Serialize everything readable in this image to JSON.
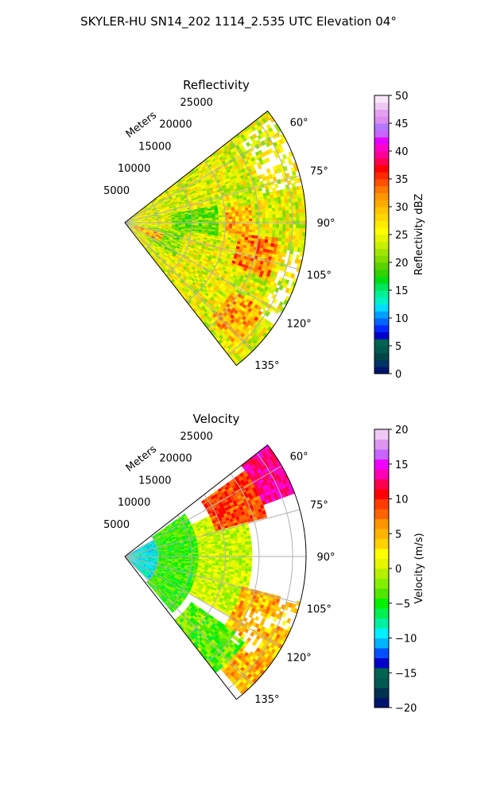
{
  "suptitle": "SKYLER-HU  SN14_202  1114_2.535 UTC Elevation 04°",
  "colors": {
    "grid": "#b0b0b0",
    "frame": "#000000",
    "reflectivity_scale": [
      "#00146e",
      "#003264",
      "#004646",
      "#005a50",
      "#006450",
      "#0000c8",
      "#0028ff",
      "#0064ff",
      "#00a0ff",
      "#00dcff",
      "#00f0c8",
      "#00f096",
      "#00e65a",
      "#00dc14",
      "#32d200",
      "#5ad200",
      "#82dc00",
      "#a0e600",
      "#c8f000",
      "#e6f500",
      "#ffff00",
      "#ffeb00",
      "#ffd700",
      "#ffc300",
      "#ffaa00",
      "#ff9600",
      "#ff7800",
      "#ff5000",
      "#ff2800",
      "#ff0000",
      "#ff0050",
      "#ff0096",
      "#ff00c8",
      "#e600ff",
      "#c864ff",
      "#b478ff",
      "#dc8cf0",
      "#e6a0f0",
      "#f0c8f5",
      "#fae6fa"
    ],
    "velocity_scale": [
      "#00146e",
      "#003250",
      "#005a50",
      "#006450",
      "#0000c8",
      "#0050ff",
      "#00b4ff",
      "#00f0ff",
      "#00f0a0",
      "#00f050",
      "#00f000",
      "#50e600",
      "#82f000",
      "#b4f000",
      "#e6f500",
      "#ffff00",
      "#ffd200",
      "#ffb400",
      "#ff9600",
      "#ff6400",
      "#ff3c00",
      "#ff0000",
      "#ff0050",
      "#ff00b4",
      "#f000ff",
      "#c864ff",
      "#dc96f0",
      "#f0c8f5"
    ]
  },
  "chart_data": [
    {
      "type": "heatmap",
      "projection": "polar-sector",
      "title": "Reflectivity",
      "radial_label": "Meters",
      "radial_ticks": [
        5000,
        10000,
        15000,
        20000,
        25000
      ],
      "radial_tick_labels": [
        "5000",
        "10000",
        "15000",
        "20000",
        "25000"
      ],
      "rmax": 27000,
      "theta_range_deg": [
        52,
        142
      ],
      "theta_ticks": [
        60,
        75,
        90,
        105,
        120,
        135
      ],
      "theta_tick_labels": [
        "60°",
        "75°",
        "90°",
        "105°",
        "120°",
        "135°"
      ],
      "grid": true,
      "colorbar": {
        "label": "Reflectivity dBZ",
        "min": 0,
        "max": 50,
        "ticks": [
          0,
          5,
          10,
          15,
          20,
          25,
          30,
          35,
          40,
          45,
          50
        ],
        "tick_labels": [
          "0",
          "5",
          "10",
          "15",
          "20",
          "25",
          "30",
          "35",
          "40",
          "45",
          "50"
        ]
      },
      "field_features": [
        {
          "r": [
            0,
            27000
          ],
          "theta": [
            52,
            142
          ],
          "value": 25,
          "spread": 3
        },
        {
          "r": [
            7000,
            14000
          ],
          "theta": [
            80,
            98
          ],
          "value": 20,
          "spread": 2
        },
        {
          "r": [
            4000,
            9000
          ],
          "theta": [
            100,
            125
          ],
          "value": 21,
          "spread": 2
        },
        {
          "r": [
            15000,
            19000
          ],
          "theta": [
            82,
            96
          ],
          "value": 30,
          "spread": 3
        },
        {
          "r": [
            17000,
            23000
          ],
          "theta": [
            96,
            112
          ],
          "value": 32,
          "spread": 3
        },
        {
          "r": [
            19000,
            24500
          ],
          "theta": [
            122,
            138
          ],
          "value": 31,
          "spread": 3
        },
        {
          "r": [
            1500,
            6000
          ],
          "theta": [
            105,
            118
          ],
          "value": 30,
          "spread": 3
        }
      ],
      "missing": [
        {
          "r": [
            21000,
            27000
          ],
          "theta": [
            55,
            78
          ]
        },
        {
          "r": [
            24000,
            27000
          ],
          "theta": [
            100,
            125
          ]
        }
      ]
    },
    {
      "type": "heatmap",
      "projection": "polar-sector",
      "title": "Velocity",
      "radial_label": "Meters",
      "radial_ticks": [
        5000,
        10000,
        15000,
        20000,
        25000
      ],
      "radial_tick_labels": [
        "5000",
        "10000",
        "15000",
        "20000",
        "25000"
      ],
      "rmax": 27000,
      "theta_range_deg": [
        52,
        142
      ],
      "theta_ticks": [
        60,
        75,
        90,
        105,
        120,
        135
      ],
      "theta_tick_labels": [
        "60°",
        "75°",
        "90°",
        "105°",
        "120°",
        "135°"
      ],
      "grid": true,
      "colorbar": {
        "label": "Velocity (m/s)",
        "min": -20,
        "max": 20,
        "ticks": [
          -20,
          -15,
          -10,
          -5,
          0,
          5,
          10,
          15,
          20
        ],
        "tick_labels": [
          "−20",
          "−15",
          "−10",
          "−5",
          "0",
          "5",
          "10",
          "15",
          "20"
        ]
      },
      "field_features": [
        {
          "r": [
            0,
            5000
          ],
          "theta": [
            60,
            135
          ],
          "value": -9,
          "spread": 1.5
        },
        {
          "r": [
            5000,
            11000
          ],
          "theta": [
            55,
            140
          ],
          "value": -4,
          "spread": 1.5
        },
        {
          "r": [
            11000,
            19000
          ],
          "theta": [
            65,
            120
          ],
          "value": 0,
          "spread": 1.5
        },
        {
          "r": [
            14000,
            22000
          ],
          "theta": [
            55,
            75
          ],
          "value": 9,
          "spread": 1.5
        },
        {
          "r": [
            22000,
            27000
          ],
          "theta": [
            52,
            70
          ],
          "value": 13,
          "spread": 1
        },
        {
          "r": [
            18000,
            27000
          ],
          "theta": [
            105,
            140
          ],
          "value": 5,
          "spread": 2
        },
        {
          "r": [
            12000,
            22000
          ],
          "theta": [
            125,
            142
          ],
          "value": -3,
          "spread": 2
        }
      ],
      "missing": [
        {
          "r": [
            24000,
            27000
          ],
          "theta": [
            75,
            115
          ]
        },
        {
          "r": [
            20000,
            24000
          ],
          "theta": [
            112,
            128
          ]
        }
      ]
    }
  ]
}
